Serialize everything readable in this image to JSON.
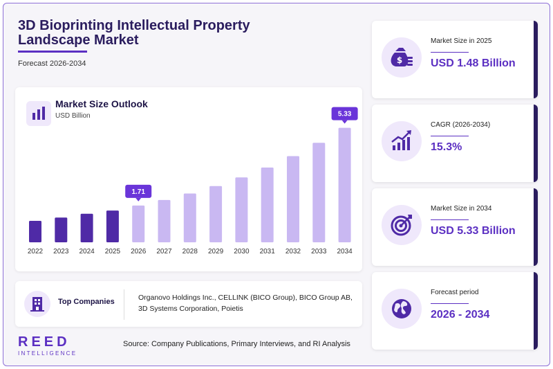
{
  "header": {
    "title": "3D Bioprinting Intellectual Property Landscape Market",
    "subtitle": "Forecast 2026-2034"
  },
  "chart_card": {
    "title": "Market Size Outlook",
    "unit": "USD Billion",
    "icon": "bar-chart-icon"
  },
  "chart_data": {
    "type": "bar",
    "title": "Market Size Outlook",
    "ylabel": "USD Billion",
    "categories": [
      "2022",
      "2023",
      "2024",
      "2025",
      "2026",
      "2027",
      "2028",
      "2029",
      "2030",
      "2031",
      "2032",
      "2033",
      "2034"
    ],
    "values": [
      1.0,
      1.15,
      1.33,
      1.48,
      1.71,
      1.97,
      2.27,
      2.62,
      3.02,
      3.48,
      4.01,
      4.63,
      5.33
    ],
    "ylim": [
      0,
      5.8
    ],
    "callouts": [
      {
        "category": "2026",
        "label": "1.71"
      },
      {
        "category": "2034",
        "label": "5.33"
      }
    ],
    "colors": {
      "historical": "#4f2aa6",
      "forecast": "#c9b8f2",
      "callout": "#6a35d9"
    },
    "grid": false,
    "legend": "none"
  },
  "companies": {
    "label": "Top Companies",
    "text": "Organovo Holdings Inc., CELLINK (BICO Group), BICO Group AB, 3D Systems Corporation, Poietis",
    "icon": "building-icon"
  },
  "logo": {
    "main": "REED",
    "sub": "INTELLIGENCE"
  },
  "source": "Source: Company Publications, Primary Interviews, and RI Analysis",
  "kpis": [
    {
      "label": "Market Size in 2025",
      "value": "USD 1.48 Billion",
      "icon": "money-bag-icon"
    },
    {
      "label": "CAGR (2026-2034)",
      "value": "15.3%",
      "icon": "growth-chart-icon"
    },
    {
      "label": "Market Size in 2034",
      "value": "USD 5.33 Billion",
      "icon": "target-icon"
    },
    {
      "label": "Forecast period",
      "value": "2026 - 2034",
      "icon": "globe-icon"
    }
  ],
  "colors": {
    "accent": "#5b2fc2",
    "dark": "#2a1c5e",
    "tint": "#efe8fb"
  }
}
